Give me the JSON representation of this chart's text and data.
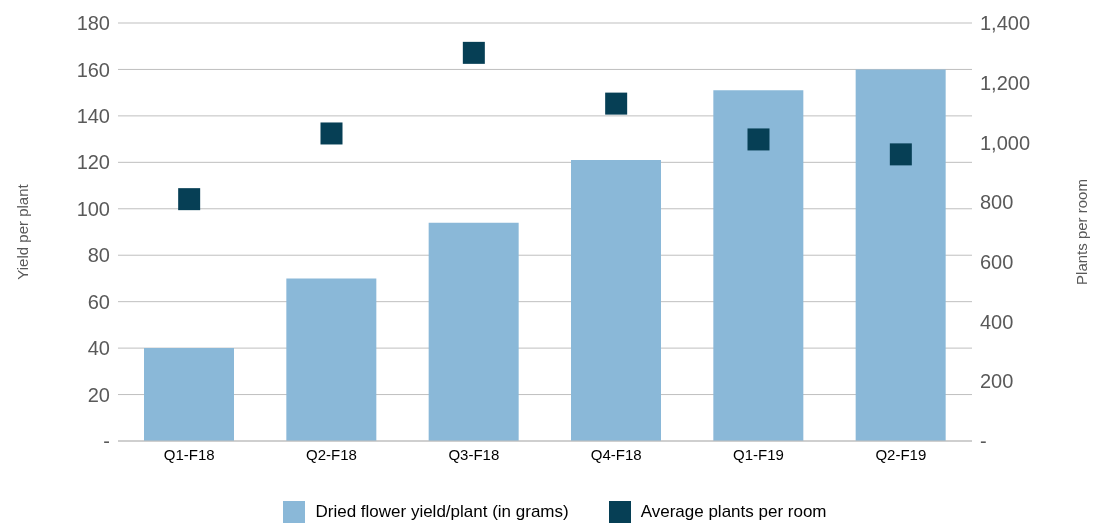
{
  "chart_data": {
    "type": "bar",
    "categories": [
      "Q1-F18",
      "Q2-F18",
      "Q3-F18",
      "Q4-F18",
      "Q1-F19",
      "Q2-F19"
    ],
    "series": [
      {
        "name": "Dried flower yield/plant (in grams)",
        "color": "#8ab8d8",
        "values": [
          40,
          70,
          94,
          121,
          151,
          160
        ]
      },
      {
        "name": "Average plants per room",
        "type": "scatter",
        "axis": "y2",
        "color": "#063f55",
        "values": [
          810,
          1030,
          1300,
          1130,
          1010,
          960
        ]
      }
    ],
    "ylabel": "Yield per plant",
    "y2label": "Plants per room",
    "ylim": [
      0,
      180
    ],
    "yticks": [
      {
        "value": 0,
        "label": "-"
      },
      20,
      40,
      60,
      80,
      100,
      120,
      140,
      160,
      180
    ],
    "y2lim": [
      0,
      1400
    ],
    "y2ticks": [
      {
        "value": 0,
        "label": "-"
      },
      {
        "value": 200,
        "label": "200"
      },
      {
        "value": 400,
        "label": "400"
      },
      {
        "value": 600,
        "label": "600"
      },
      {
        "value": 800,
        "label": "800"
      },
      {
        "value": 1000,
        "label": "1,000"
      },
      {
        "value": 1200,
        "label": "1,200"
      },
      {
        "value": 1400,
        "label": "1,400"
      }
    ],
    "grid": "y",
    "legend": "bottom",
    "marker": "square"
  }
}
